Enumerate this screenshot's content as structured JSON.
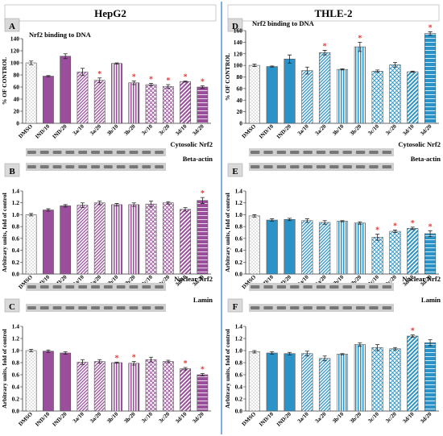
{
  "header": {
    "left_title": "HepG2",
    "right_title": "THLE-2"
  },
  "colors": {
    "purple": "#9a4e9c",
    "purple_light": "#c9a6cc",
    "blue": "#2b93c8",
    "blue_light": "#a8d3ea",
    "star": "#e53935",
    "divider": "#5b9bd5"
  },
  "chart_data": [
    {
      "id": "A",
      "type": "bar",
      "cell_line": "HepG2",
      "title": "Nrf2 binding to DNA",
      "ylabel": "% OF CONTROL",
      "categories": [
        "DMSO",
        "IND/10",
        "IND/20",
        "3a/10",
        "3a/20",
        "3b/10",
        "3b/20",
        "3c/10",
        "3c/20",
        "3d/10",
        "3d/20"
      ],
      "values": [
        100,
        78,
        111,
        85,
        71,
        99,
        67,
        64,
        61,
        69,
        60
      ],
      "errors": [
        3,
        1,
        4,
        6,
        4,
        1,
        3,
        2,
        3,
        1,
        2
      ],
      "significant": [
        false,
        false,
        false,
        false,
        true,
        false,
        true,
        true,
        true,
        true,
        true
      ],
      "ylim": [
        0,
        140
      ],
      "yticks": [
        0,
        20,
        40,
        60,
        80,
        100,
        120,
        140
      ]
    },
    {
      "id": "B",
      "type": "bar",
      "cell_line": "HepG2",
      "blot_labels": [
        "Cytosolic Nrf2",
        "Beta-actin"
      ],
      "ylabel": "Arbitrary units, fold of control",
      "categories": [
        "DMSO",
        "IND/10",
        "IND/20",
        "3a/10",
        "3a/20",
        "3b/10",
        "3b/20",
        "3c/10",
        "3c/20",
        "3d/10",
        "3d/20"
      ],
      "values": [
        1.0,
        1.08,
        1.15,
        1.16,
        1.2,
        1.17,
        1.17,
        1.18,
        1.2,
        1.09,
        1.24
      ],
      "errors": [
        0.02,
        0.02,
        0.02,
        0.04,
        0.03,
        0.02,
        0.03,
        0.05,
        0.02,
        0.03,
        0.05
      ],
      "significant": [
        false,
        false,
        false,
        false,
        false,
        false,
        false,
        false,
        false,
        false,
        true
      ],
      "ylim": [
        0,
        1.4
      ],
      "yticks": [
        "0.0",
        "0.2",
        "0.4",
        "0.6",
        "0.8",
        "1.0",
        "1.2",
        "1.4"
      ]
    },
    {
      "id": "C",
      "type": "bar",
      "cell_line": "HepG2",
      "blot_labels": [
        "Nuclear  Nrf2",
        "Lamin"
      ],
      "ylabel": "Arbitrary units, fold of control",
      "categories": [
        "DMSO",
        "IND/10",
        "IND/20",
        "3a/10",
        "3a/20",
        "3b/10",
        "3b/20",
        "3c/10",
        "3c/20",
        "3d/10",
        "3d/20"
      ],
      "values": [
        1.0,
        0.99,
        0.96,
        0.81,
        0.82,
        0.8,
        0.79,
        0.85,
        0.82,
        0.7,
        0.6
      ],
      "errors": [
        0.02,
        0.02,
        0.02,
        0.04,
        0.03,
        0.01,
        0.03,
        0.04,
        0.02,
        0.02,
        0.02
      ],
      "significant": [
        false,
        false,
        false,
        false,
        false,
        true,
        true,
        false,
        false,
        true,
        true
      ],
      "ylim": [
        0,
        1.4
      ],
      "yticks": [
        "0.0",
        "0.2",
        "0.4",
        "0.6",
        "0.8",
        "1.0",
        "1.2",
        "1.4"
      ]
    },
    {
      "id": "D",
      "type": "bar",
      "cell_line": "THLE-2",
      "title": "Nrf2 binding to DNA",
      "ylabel": "% OF CONTROL",
      "categories": [
        "DMSO",
        "IND/10",
        "IND/20",
        "3a/10",
        "3a/20",
        "3b/10",
        "3b/20",
        "3c/10",
        "3c/20",
        "3d/10",
        "3d/20"
      ],
      "values": [
        100,
        98,
        111,
        91,
        122,
        93,
        132,
        90,
        101,
        89,
        155
      ],
      "errors": [
        2,
        1,
        7,
        6,
        4,
        1,
        8,
        2,
        4,
        1,
        3
      ],
      "significant": [
        false,
        false,
        false,
        false,
        true,
        false,
        true,
        false,
        false,
        false,
        true
      ],
      "ylim": [
        0,
        160
      ],
      "yticks": [
        0,
        20,
        40,
        60,
        80,
        100,
        120,
        140,
        160
      ]
    },
    {
      "id": "E",
      "type": "bar",
      "cell_line": "THLE-2",
      "blot_labels": [
        "Cytosolic Nrf2",
        "Beta-actin"
      ],
      "ylabel": "Arbitrary units, fold of control",
      "categories": [
        "DMSO",
        "IND/10",
        "IND/20",
        "3a/10",
        "3a/20",
        "3b/10",
        "3b/20",
        "3c/10",
        "3c/20",
        "3d/10",
        "3d/20"
      ],
      "values": [
        0.98,
        0.91,
        0.92,
        0.9,
        0.87,
        0.89,
        0.86,
        0.62,
        0.72,
        0.77,
        0.68
      ],
      "errors": [
        0.02,
        0.02,
        0.02,
        0.03,
        0.03,
        0.01,
        0.02,
        0.05,
        0.02,
        0.02,
        0.05
      ],
      "significant": [
        false,
        false,
        false,
        false,
        false,
        false,
        false,
        true,
        true,
        true,
        true
      ],
      "ylim": [
        0,
        1.4
      ],
      "yticks": [
        "0.0",
        "0.2",
        "0.4",
        "0.6",
        "0.8",
        "1.0",
        "1.2",
        "1.4"
      ]
    },
    {
      "id": "F",
      "type": "bar",
      "cell_line": "THLE-2",
      "blot_labels": [
        "Nuclear  Nrf2",
        "Lamin"
      ],
      "ylabel": "Arbitrary units, fold of control",
      "categories": [
        "DMSO",
        "IND/10",
        "IND/20",
        "3a/10",
        "3a/20",
        "3b/10",
        "3b/20",
        "3c/10",
        "3c/20",
        "3d/10",
        "3d/20"
      ],
      "values": [
        0.98,
        0.96,
        0.95,
        0.95,
        0.87,
        0.94,
        1.1,
        1.05,
        1.03,
        1.24,
        1.13
      ],
      "errors": [
        0.02,
        0.02,
        0.02,
        0.04,
        0.04,
        0.01,
        0.03,
        0.05,
        0.02,
        0.02,
        0.05
      ],
      "significant": [
        false,
        false,
        false,
        false,
        false,
        false,
        false,
        false,
        false,
        true,
        false
      ],
      "ylim": [
        0,
        1.4
      ],
      "yticks": [
        "0.0",
        "0.2",
        "0.4",
        "0.6",
        "0.8",
        "1.0",
        "1.2",
        "1.4"
      ]
    }
  ]
}
